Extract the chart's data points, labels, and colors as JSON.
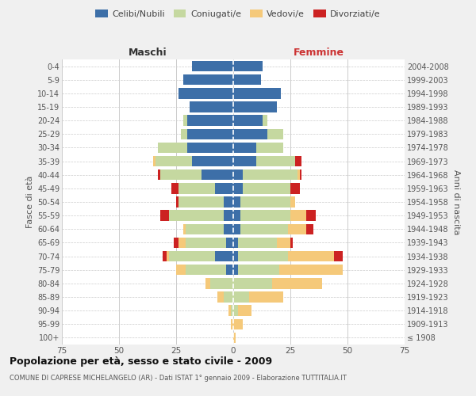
{
  "age_groups": [
    "100+",
    "95-99",
    "90-94",
    "85-89",
    "80-84",
    "75-79",
    "70-74",
    "65-69",
    "60-64",
    "55-59",
    "50-54",
    "45-49",
    "40-44",
    "35-39",
    "30-34",
    "25-29",
    "20-24",
    "15-19",
    "10-14",
    "5-9",
    "0-4"
  ],
  "birth_years": [
    "≤ 1908",
    "1909-1913",
    "1914-1918",
    "1919-1923",
    "1924-1928",
    "1929-1933",
    "1934-1938",
    "1939-1943",
    "1944-1948",
    "1949-1953",
    "1954-1958",
    "1959-1963",
    "1964-1968",
    "1969-1973",
    "1974-1978",
    "1979-1983",
    "1984-1988",
    "1989-1993",
    "1994-1998",
    "1999-2003",
    "2004-2008"
  ],
  "male_celibi": [
    0,
    0,
    0,
    0,
    0,
    3,
    8,
    3,
    4,
    4,
    4,
    8,
    14,
    18,
    20,
    20,
    20,
    19,
    24,
    22,
    18
  ],
  "male_coniugati": [
    0,
    0,
    1,
    4,
    10,
    18,
    20,
    18,
    17,
    24,
    20,
    16,
    18,
    16,
    13,
    3,
    2,
    0,
    0,
    0,
    0
  ],
  "male_vedovi": [
    0,
    1,
    1,
    3,
    2,
    4,
    1,
    3,
    1,
    0,
    0,
    0,
    0,
    1,
    0,
    0,
    0,
    0,
    0,
    0,
    0
  ],
  "male_divorziati": [
    0,
    0,
    0,
    0,
    0,
    0,
    2,
    2,
    0,
    4,
    1,
    3,
    1,
    0,
    0,
    0,
    0,
    0,
    0,
    0,
    0
  ],
  "female_celibi": [
    0,
    0,
    0,
    0,
    0,
    2,
    2,
    2,
    3,
    3,
    3,
    4,
    4,
    10,
    10,
    15,
    13,
    19,
    21,
    12,
    13
  ],
  "female_coniugati": [
    0,
    0,
    2,
    7,
    17,
    18,
    22,
    17,
    21,
    22,
    22,
    21,
    24,
    17,
    12,
    7,
    2,
    0,
    0,
    0,
    0
  ],
  "female_vedovi": [
    1,
    4,
    6,
    15,
    22,
    28,
    20,
    6,
    8,
    7,
    2,
    0,
    1,
    0,
    0,
    0,
    0,
    0,
    0,
    0,
    0
  ],
  "female_divorziati": [
    0,
    0,
    0,
    0,
    0,
    0,
    4,
    1,
    3,
    4,
    0,
    4,
    1,
    3,
    0,
    0,
    0,
    0,
    0,
    0,
    0
  ],
  "color_celibi": "#3d6fa8",
  "color_coniugati": "#c5d8a0",
  "color_vedovi": "#f5c97a",
  "color_divorziati": "#cc2222",
  "title": "Popolazione per età, sesso e stato civile - 2009",
  "subtitle": "COMUNE DI CAPRESE MICHELANGELO (AR) - Dati ISTAT 1° gennaio 2009 - Elaborazione TUTTITALIA.IT",
  "xlabel_left": "Maschi",
  "xlabel_right": "Femmine",
  "ylabel_left": "Fasce di età",
  "ylabel_right": "Anni di nascita",
  "xlim": 75,
  "bg_color": "#f0f0f0",
  "plot_bg": "#ffffff",
  "grid_color": "#cccccc"
}
